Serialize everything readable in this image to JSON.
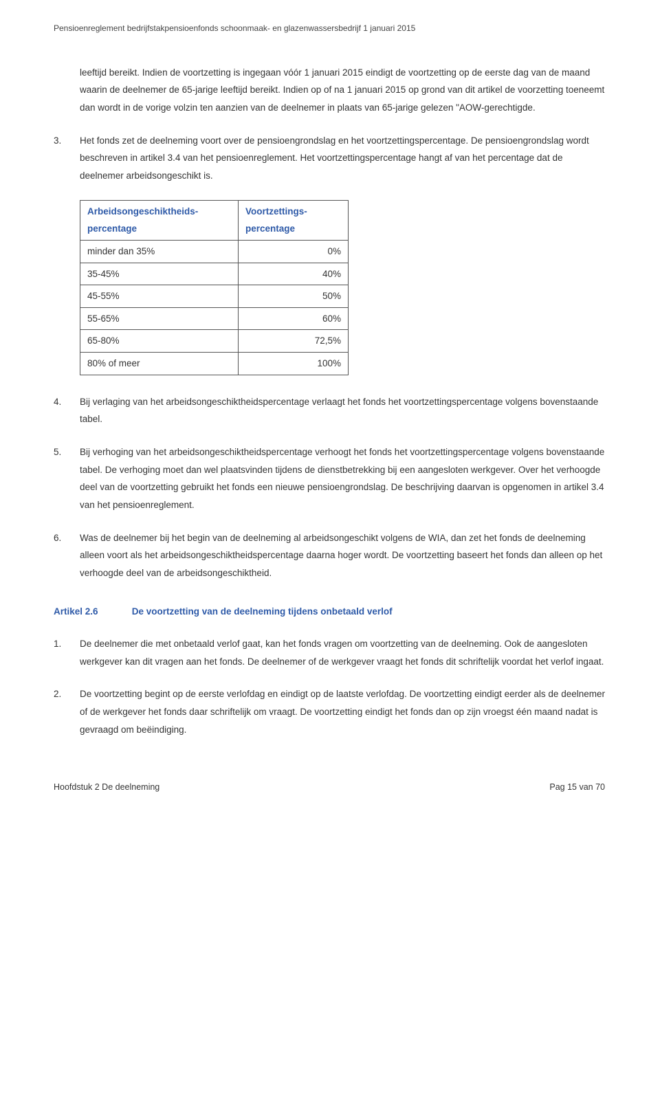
{
  "header": {
    "text": "Pensioenreglement bedrijfstakpensioenfonds schoonmaak- en glazenwassersbedrijf 1 januari 2015"
  },
  "intro_paragraph": "leeftijd bereikt. Indien de voortzetting is ingegaan vóór 1 januari 2015 eindigt de voortzetting op de eerste dag van de maand waarin de deelnemer de 65-jarige leeftijd bereikt. Indien op of na 1 januari 2015 op grond van dit artikel de voorzetting toeneemt dan wordt in de vorige volzin ten aanzien van de deelnemer in plaats van 65-jarige gelezen \"AOW-gerechtigde.",
  "item3": {
    "num": "3.",
    "text": "Het fonds zet de deelneming voort over de pensioengrondslag en het voortzettingspercentage. De pensioengrondslag wordt beschreven in artikel 3.4 van het pensioenreglement. Het voortzettingspercentage hangt af van het percentage dat de deelnemer arbeidsongeschikt is."
  },
  "table": {
    "header_col1_line1": "Arbeidsongeschiktheids-",
    "header_col1_line2": "percentage",
    "header_col2_line1": "Voortzettings-",
    "header_col2_line2": "percentage",
    "rows": [
      {
        "c1": "minder dan 35%",
        "c2": "0%"
      },
      {
        "c1": "35-45%",
        "c2": "40%"
      },
      {
        "c1": "45-55%",
        "c2": "50%"
      },
      {
        "c1": "55-65%",
        "c2": "60%"
      },
      {
        "c1": "65-80%",
        "c2": "72,5%"
      },
      {
        "c1": "80% of meer",
        "c2": "100%"
      }
    ]
  },
  "item4": {
    "num": "4.",
    "text": "Bij verlaging van het arbeidsongeschiktheidspercentage verlaagt het fonds het voortzettingspercentage volgens bovenstaande tabel."
  },
  "item5": {
    "num": "5.",
    "text": "Bij verhoging van het arbeidsongeschiktheidspercentage verhoogt het fonds het voortzettingspercentage volgens bovenstaande tabel. De verhoging moet dan wel plaatsvinden tijdens de dienstbetrekking bij een aangesloten werkgever. Over het verhoogde deel van de voortzetting gebruikt het fonds een nieuwe pensioengrondslag. De beschrijving daarvan is opgenomen in artikel 3.4 van het pensioenreglement."
  },
  "item6": {
    "num": "6.",
    "text": "Was de deelnemer bij het begin van de deelneming al arbeidsongeschikt volgens de WIA, dan zet het fonds de deelneming alleen voort als het arbeidsongeschiktheidspercentage daarna hoger wordt. De voortzetting baseert het fonds dan alleen op het verhoogde deel van de arbeidsongeschiktheid."
  },
  "article26": {
    "num": "Artikel 2.6",
    "title": "De voortzetting van de deelneming tijdens onbetaald verlof"
  },
  "item26_1": {
    "num": "1.",
    "text": "De deelnemer die met onbetaald verlof gaat, kan het fonds vragen om voortzetting van de deelneming. Ook de aangesloten werkgever kan dit vragen aan het fonds. De deelnemer of de werkgever vraagt het fonds dit schriftelijk voordat het verlof ingaat."
  },
  "item26_2": {
    "num": "2.",
    "text": "De voortzetting begint op de eerste verlofdag en eindigt op de laatste verlofdag. De voortzetting eindigt eerder als de deelnemer of de werkgever het fonds daar schriftelijk om vraagt. De voortzetting eindigt het fonds dan op zijn vroegst één maand nadat is gevraagd om beëindiging."
  },
  "footer": {
    "left": "Hoofdstuk 2 De deelneming",
    "right": "Pag 15 van 70"
  },
  "colors": {
    "heading_blue": "#2e5aa8",
    "text": "#333333",
    "border": "#555555",
    "background": "#ffffff"
  }
}
